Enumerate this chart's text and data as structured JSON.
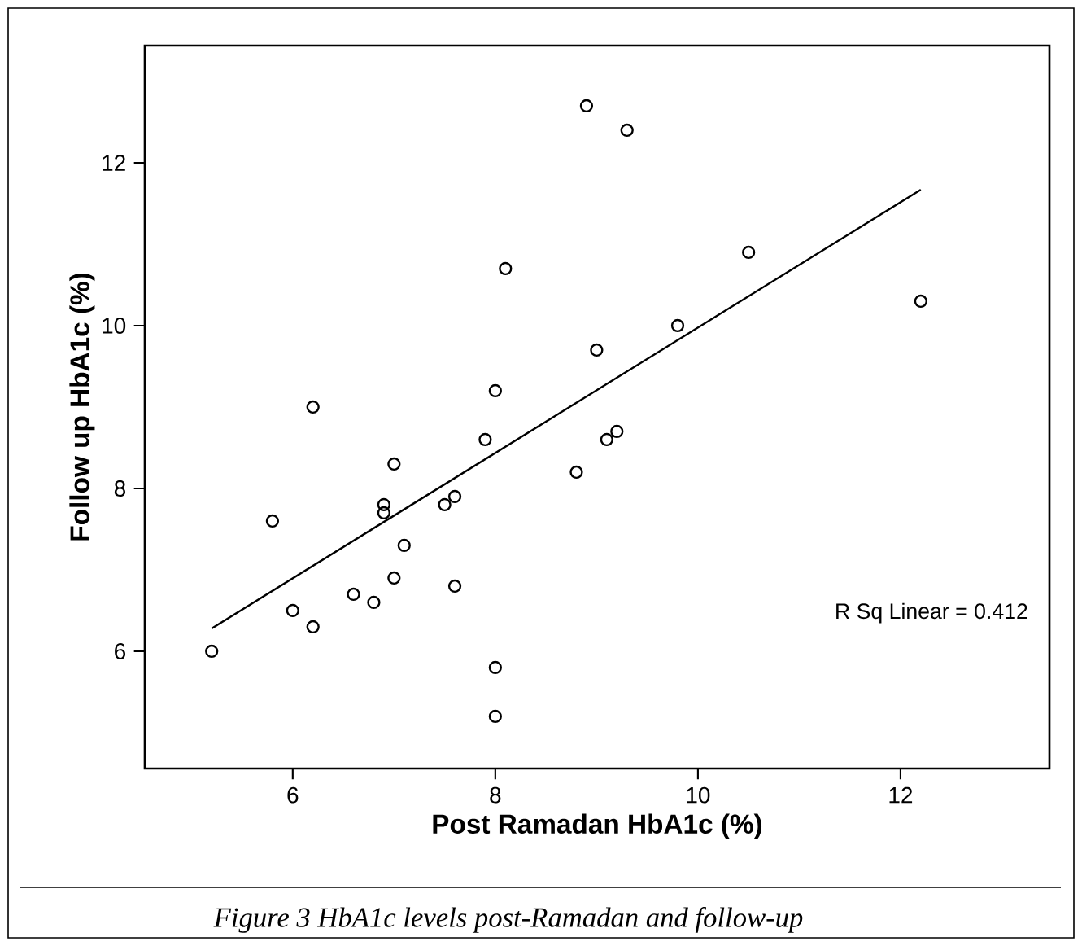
{
  "chart_data": {
    "type": "scatter",
    "xlabel": "Post Ramadan HbA1c (%)",
    "ylabel": "Follow up HbA1c (%)",
    "xlim": [
      4.54,
      13.47
    ],
    "ylim": [
      4.56,
      13.44
    ],
    "xticks": [
      6,
      8,
      10,
      12
    ],
    "yticks": [
      6,
      8,
      10,
      12
    ],
    "grid": false,
    "annotations": [
      "R Sq Linear = 0.412",
      "*Figure 3 HbA1c levels post-Ramadan and follow-up*"
    ],
    "series": [
      {
        "color": "#000000",
        "marker": "circle",
        "x": [
          5.2,
          5.8,
          6.0,
          6.2,
          6.2,
          6.6,
          6.8,
          6.9,
          6.9,
          7.0,
          7.0,
          7.1,
          7.5,
          7.6,
          7.6,
          7.9,
          8.0,
          8.0,
          8.0,
          8.1,
          8.8,
          8.9,
          9.0,
          9.1,
          9.2,
          9.3,
          9.8,
          10.5,
          12.2
        ],
        "values": [
          6.0,
          7.6,
          6.5,
          6.3,
          9.0,
          6.7,
          6.6,
          7.8,
          7.7,
          8.3,
          6.9,
          7.3,
          7.8,
          7.9,
          6.8,
          8.6,
          9.2,
          5.8,
          5.2,
          10.7,
          8.2,
          12.7,
          9.7,
          8.6,
          8.7,
          12.4,
          10.0,
          10.9,
          10.3
        ]
      },
      {
        "type": "line",
        "color": "#000000",
        "line_style": "solid",
        "marker": "none",
        "x": [
          5.2,
          12.2
        ],
        "values": [
          6.28,
          11.67
        ]
      }
    ]
  }
}
